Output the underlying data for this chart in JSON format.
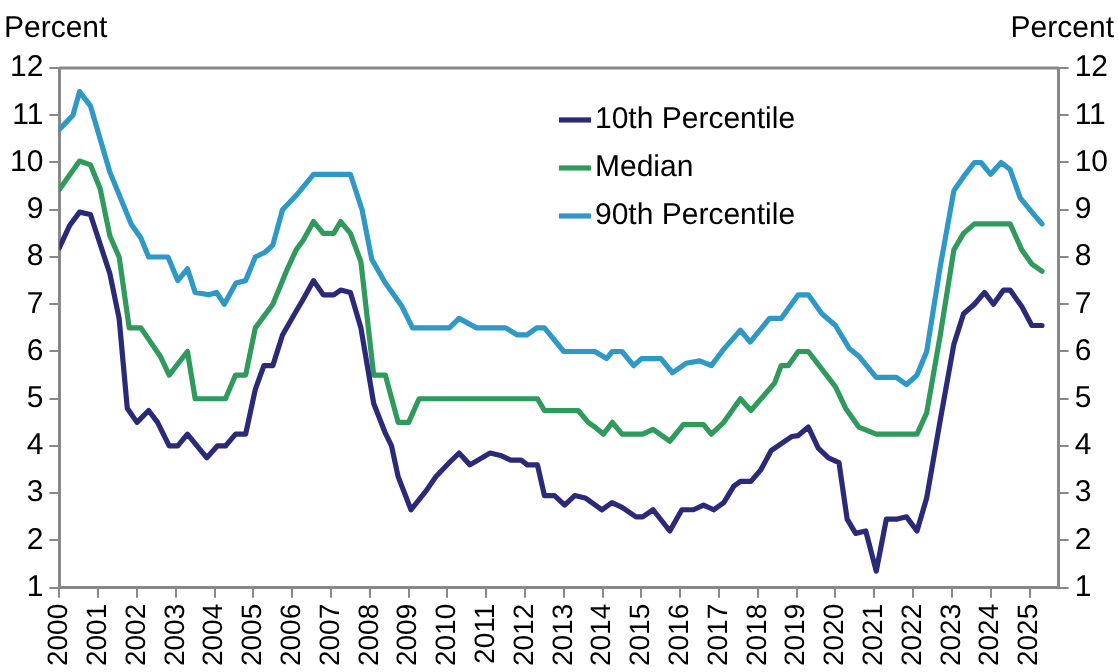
{
  "chart_data": {
    "type": "line",
    "ylabel": "Percent",
    "y2label": "Percent",
    "xlim": [
      2000,
      2025.75
    ],
    "xticks": [
      2000,
      2001,
      2002,
      2003,
      2004,
      2005,
      2006,
      2007,
      2008,
      2009,
      2010,
      2011,
      2012,
      2013,
      2014,
      2015,
      2016,
      2017,
      2018,
      2019,
      2020,
      2021,
      2022,
      2023,
      2024,
      2025
    ],
    "ylim": [
      1,
      12
    ],
    "yticks": [
      1,
      2,
      3,
      4,
      5,
      6,
      7,
      8,
      9,
      10,
      11,
      12
    ],
    "y2lim": [
      1,
      12
    ],
    "y2ticks": [
      1,
      2,
      3,
      4,
      5,
      6,
      7,
      8,
      9,
      10,
      11,
      12
    ],
    "legend": "top",
    "grid": false,
    "marker": "none",
    "line_style": "solid",
    "series": [
      {
        "name": "10th Percentile",
        "color": "#2b2a78",
        "x": [
          2000,
          2000.26,
          2000.52,
          2000.8,
          2001.3,
          2001.54,
          2001.75,
          2002,
          2002.3,
          2002.53,
          2002.83,
          2003.05,
          2003.3,
          2003.8,
          2004.07,
          2004.28,
          2004.54,
          2004.8,
          2005.05,
          2005.27,
          2005.5,
          2005.75,
          2006.1,
          2006.28,
          2006.55,
          2006.8,
          2007.07,
          2007.25,
          2007.5,
          2007.77,
          2008.1,
          2008.4,
          2008.56,
          2008.73,
          2009.06,
          2009.45,
          2009.7,
          2010.05,
          2010.3,
          2010.58,
          2011.1,
          2011.37,
          2011.63,
          2011.9,
          2012.06,
          2012.32,
          2012.5,
          2012.76,
          2013.02,
          2013.28,
          2013.55,
          2013.98,
          2014.24,
          2014.5,
          2014.86,
          2015.03,
          2015.3,
          2015.73,
          2016.04,
          2016.34,
          2016.6,
          2016.86,
          2017.12,
          2017.38,
          2017.55,
          2017.82,
          2018.08,
          2018.34,
          2018.87,
          2019.04,
          2019.3,
          2019.56,
          2019.82,
          2020.09,
          2020.3,
          2020.52,
          2020.78,
          2021.05,
          2021.31,
          2021.57,
          2021.83,
          2022.1,
          2022.35,
          2022.7,
          2023.05,
          2023.3,
          2023.58,
          2023.84,
          2024.07,
          2024.33,
          2024.5,
          2024.8,
          2025.06,
          2025.32
        ],
        "values": [
          8.2,
          8.66,
          8.95,
          8.9,
          7.65,
          6.7,
          4.8,
          4.5,
          4.75,
          4.5,
          4,
          4,
          4.25,
          3.75,
          4,
          4,
          4.25,
          4.25,
          5.2,
          5.7,
          5.7,
          6.35,
          6.85,
          7.1,
          7.5,
          7.2,
          7.2,
          7.3,
          7.25,
          6.5,
          4.9,
          4.27,
          4,
          3.35,
          2.65,
          3.05,
          3.35,
          3.65,
          3.85,
          3.6,
          3.85,
          3.8,
          3.7,
          3.7,
          3.6,
          3.6,
          2.95,
          2.95,
          2.75,
          2.95,
          2.9,
          2.65,
          2.8,
          2.7,
          2.5,
          2.5,
          2.65,
          2.2,
          2.65,
          2.65,
          2.75,
          2.65,
          2.8,
          3.15,
          3.25,
          3.25,
          3.5,
          3.9,
          4.2,
          4.22,
          4.4,
          3.95,
          3.75,
          3.65,
          2.45,
          2.15,
          2.2,
          1.35,
          2.45,
          2.45,
          2.5,
          2.2,
          2.9,
          4.55,
          6.15,
          6.8,
          7,
          7.25,
          7,
          7.3,
          7.3,
          6.95,
          6.55,
          6.55
        ]
      },
      {
        "name": "Median",
        "color": "#2f9a5c",
        "x": [
          2000,
          2000.52,
          2000.8,
          2001.05,
          2001.3,
          2001.54,
          2001.8,
          2002.1,
          2002.6,
          2002.83,
          2003.3,
          2003.5,
          2004.28,
          2004.54,
          2004.8,
          2005.05,
          2005.5,
          2005.85,
          2006.1,
          2006.28,
          2006.55,
          2006.8,
          2007.07,
          2007.25,
          2007.5,
          2007.77,
          2008.1,
          2008.4,
          2008.73,
          2009,
          2009.27,
          2012.32,
          2012.5,
          2013.37,
          2013.63,
          2013.8,
          2014.02,
          2014.25,
          2014.5,
          2015.03,
          2015.3,
          2015.73,
          2016.08,
          2016.6,
          2016.8,
          2017.12,
          2017.55,
          2017.82,
          2018.43,
          2018.6,
          2018.78,
          2019.04,
          2019.3,
          2020,
          2020.26,
          2020.6,
          2021.05,
          2022.1,
          2022.35,
          2022.7,
          2023.05,
          2023.3,
          2023.58,
          2024.5,
          2024.8,
          2025.06,
          2025.32
        ],
        "values": [
          9.43,
          10.03,
          9.95,
          9.45,
          8.45,
          8,
          6.5,
          6.5,
          5.9,
          5.5,
          6,
          5,
          5,
          5.5,
          5.5,
          6.5,
          7,
          7.7,
          8.15,
          8.35,
          8.75,
          8.5,
          8.5,
          8.75,
          8.5,
          7.9,
          5.5,
          5.5,
          4.5,
          4.5,
          5,
          5,
          4.75,
          4.75,
          4.5,
          4.4,
          4.25,
          4.5,
          4.25,
          4.25,
          4.35,
          4.1,
          4.45,
          4.45,
          4.25,
          4.5,
          5,
          4.75,
          5.33,
          5.7,
          5.7,
          6,
          6,
          5.25,
          4.8,
          4.4,
          4.25,
          4.25,
          4.7,
          6.35,
          8.15,
          8.5,
          8.7,
          8.7,
          8.15,
          7.85,
          7.7
        ]
      },
      {
        "name": "90th Percentile",
        "color": "#2e98c6",
        "x": [
          2000,
          2000.35,
          2000.52,
          2000.8,
          2001.3,
          2001.85,
          2002.1,
          2002.3,
          2002.8,
          2003.05,
          2003.3,
          2003.5,
          2003.85,
          2004.05,
          2004.25,
          2004.55,
          2004.8,
          2005.05,
          2005.3,
          2005.5,
          2005.75,
          2006.1,
          2006.55,
          2007.5,
          2007.8,
          2008.05,
          2008.4,
          2008.83,
          2009.1,
          2010.05,
          2010.3,
          2010.75,
          2011.5,
          2011.8,
          2012.05,
          2012.3,
          2012.5,
          2013,
          2013.8,
          2014.1,
          2014.25,
          2014.5,
          2014.8,
          2015,
          2015.5,
          2015.8,
          2016.15,
          2016.5,
          2016.8,
          2017.12,
          2017.55,
          2017.8,
          2018.3,
          2018.6,
          2019.04,
          2019.3,
          2019.65,
          2020,
          2020.35,
          2020.6,
          2021.05,
          2021.57,
          2021.83,
          2022.1,
          2022.35,
          2022.7,
          2023.05,
          2023.3,
          2023.58,
          2023.75,
          2024,
          2024.27,
          2024.5,
          2024.76,
          2025.06,
          2025.32
        ],
        "values": [
          10.7,
          11,
          11.5,
          11.2,
          9.8,
          8.7,
          8.4,
          8,
          8,
          7.5,
          7.75,
          7.25,
          7.2,
          7.25,
          7,
          7.45,
          7.5,
          8,
          8.1,
          8.25,
          9,
          9.3,
          9.75,
          9.75,
          9,
          7.95,
          7.45,
          6.95,
          6.5,
          6.5,
          6.7,
          6.5,
          6.5,
          6.35,
          6.35,
          6.5,
          6.5,
          6,
          6,
          5.85,
          6,
          6,
          5.7,
          5.85,
          5.85,
          5.55,
          5.75,
          5.8,
          5.7,
          6.05,
          6.45,
          6.2,
          6.7,
          6.7,
          7.2,
          7.2,
          6.8,
          6.55,
          6.07,
          5.9,
          5.45,
          5.45,
          5.3,
          5.5,
          6,
          7.8,
          9.4,
          9.7,
          10,
          10,
          9.75,
          10,
          9.85,
          9.25,
          8.95,
          8.7
        ]
      }
    ]
  }
}
